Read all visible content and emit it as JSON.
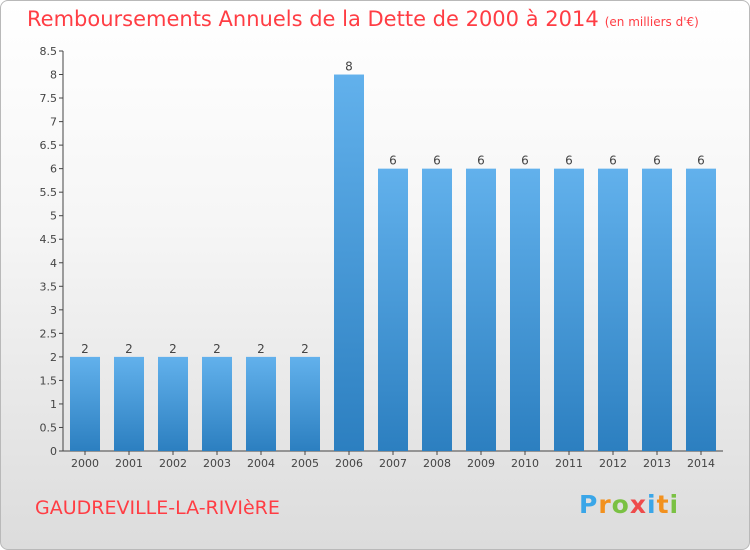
{
  "header": {
    "title": "Remboursements Annuels de la Dette de 2000 à 2014",
    "unit": "(en milliers d'€)"
  },
  "footer": {
    "commune": "GAUDREVILLE-LA-RIVIèRE",
    "logo": "Proxiti"
  },
  "colors": {
    "title": "#ff3d44",
    "bar_top": "#62b1ec",
    "bar_bottom": "#2c7fc0",
    "axis": "#444444",
    "grid": "#d6d6d6"
  },
  "chart_data": {
    "type": "bar",
    "title": "Remboursements Annuels de la Dette de 2000 à 2014",
    "subtitle": "(en milliers d'€)",
    "xlabel": "",
    "ylabel": "",
    "categories": [
      "2000",
      "2001",
      "2002",
      "2003",
      "2004",
      "2005",
      "2006",
      "2007",
      "2008",
      "2009",
      "2010",
      "2011",
      "2012",
      "2013",
      "2014"
    ],
    "values": [
      2,
      2,
      2,
      2,
      2,
      2,
      8,
      6,
      6,
      6,
      6,
      6,
      6,
      6,
      6
    ],
    "data_labels": [
      "2",
      "2",
      "2",
      "2",
      "2",
      "2",
      "8",
      "6",
      "6",
      "6",
      "6",
      "6",
      "6",
      "6",
      "6"
    ],
    "ylim": [
      0,
      8.5
    ],
    "yticks": [
      0,
      0.5,
      1,
      1.5,
      2,
      2.5,
      3,
      3.5,
      4,
      4.5,
      5,
      5.5,
      6,
      6.5,
      7,
      7.5,
      8,
      8.5
    ],
    "ytick_labels": [
      "0",
      "0.5",
      "1",
      "1.5",
      "2",
      "2.5",
      "3",
      "3.5",
      "4",
      "4.5",
      "5",
      "5.5",
      "6",
      "6.5",
      "7",
      "7.5",
      "8",
      "8.5"
    ],
    "grid": false,
    "legend": "none"
  }
}
